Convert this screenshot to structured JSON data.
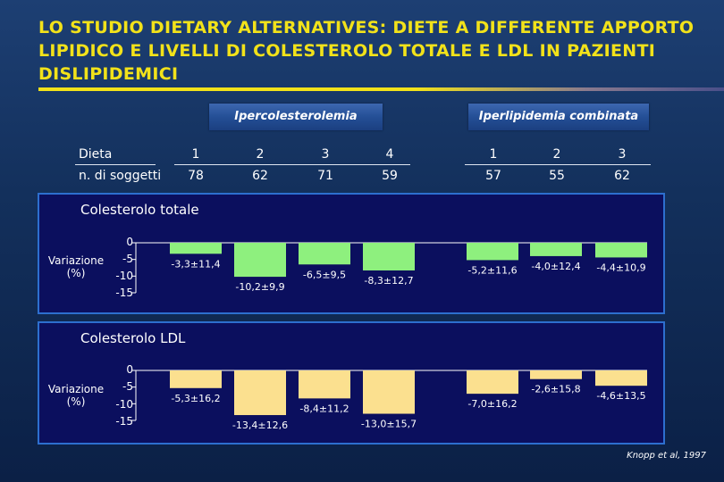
{
  "title": "LO STUDIO DIETARY ALTERNATIVES: DIETE A DIFFERENTE APPORTO LIPIDICO E LIVELLI DI COLESTEROLO TOTALE E LDL IN PAZIENTI DISLIPIDEMICI",
  "groups": [
    {
      "label": "Ipercolesterolemia",
      "diets": [
        "1",
        "2",
        "3",
        "4"
      ],
      "subjects": [
        "78",
        "62",
        "71",
        "59"
      ]
    },
    {
      "label": "Iperlipidemia combinata",
      "diets": [
        "1",
        "2",
        "3"
      ],
      "subjects": [
        "57",
        "55",
        "62"
      ]
    }
  ],
  "row_labels": {
    "diet": "Dieta",
    "subjects": "n. di soggetti"
  },
  "source": "Knopp et al, 1997",
  "colors": {
    "title": "#f2e21a",
    "total_bar": "#8ef07e",
    "ldl_bar": "#fbe08f",
    "panel_bg": "#0b0f5e",
    "panel_border": "#2d6fcf"
  },
  "chart_data": [
    {
      "type": "bar",
      "title": "Colesterolo totale",
      "ylabel": "Variazione (%)",
      "yticks": [
        "0",
        "-5",
        "-10",
        "-15"
      ],
      "ylim": [
        -15,
        0
      ],
      "categories": [
        "Ipercolesterolemia 1",
        "Ipercolesterolemia 2",
        "Ipercolesterolemia 3",
        "Ipercolesterolemia 4",
        "Iperlipidemia combinata 1",
        "Iperlipidemia combinata 2",
        "Iperlipidemia combinata 3"
      ],
      "values": [
        -3.3,
        -10.2,
        -6.5,
        -8.3,
        -5.2,
        -4.0,
        -4.4
      ],
      "labels": [
        "-3,3±11,4",
        "-10,2±9,9",
        "-6,5±9,5",
        "-8,3±12,7",
        "-5,2±11,6",
        "-4,0±12,4",
        "-4,4±10,9"
      ]
    },
    {
      "type": "bar",
      "title": "Colesterolo LDL",
      "ylabel": "Variazione (%)",
      "yticks": [
        "0",
        "-5",
        "-10",
        "-15"
      ],
      "ylim": [
        -15,
        0
      ],
      "categories": [
        "Ipercolesterolemia 1",
        "Ipercolesterolemia 2",
        "Ipercolesterolemia 3",
        "Ipercolesterolemia 4",
        "Iperlipidemia combinata 1",
        "Iperlipidemia combinata 2",
        "Iperlipidemia combinata 3"
      ],
      "values": [
        -5.3,
        -13.4,
        -8.4,
        -13.0,
        -7.0,
        -2.6,
        -4.6
      ],
      "labels": [
        "-5,3±16,2",
        "-13,4±12,6",
        "-8,4±11,2",
        "-13,0±15,7",
        "-7,0±16,2",
        "-2,6±15,8",
        "-4,6±13,5"
      ]
    }
  ]
}
